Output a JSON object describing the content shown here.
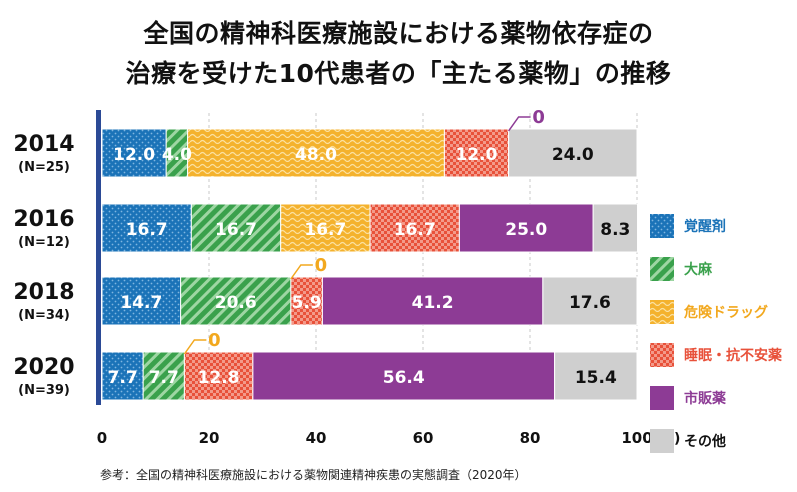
{
  "title_line1": "全国の精神科医療施設における薬物依存症の",
  "title_line2": "治療を受けた10代患者の「主たる薬物」の推移",
  "source_note": "参考：全国の精神科医療施設における薬物関連精神疾患の実態調査（2020年）",
  "colors": {
    "覚醒剤": "#1b73b8",
    "大麻": "#3aa14c",
    "危険ドラッグ": "#f2a81e",
    "睡眠・抗不安薬": "#e8513a",
    "市販薬": "#8d3b95",
    "その他": "#cfcfcf",
    "axis": "#2b4a96",
    "zero_label_2014": "#8d3b95",
    "zero_label_2018": "#f2a81e",
    "zero_label_2020": "#f2a81e"
  },
  "chart_data": {
    "type": "bar",
    "orientation": "horizontal-stacked",
    "categories": [
      "2014",
      "2016",
      "2018",
      "2020"
    ],
    "category_sublabels": [
      "(N=25)",
      "(N=12)",
      "(N=34)",
      "(N=39)"
    ],
    "series": [
      {
        "name": "覚醒剤",
        "values": [
          12.0,
          16.7,
          14.7,
          7.7
        ]
      },
      {
        "name": "大麻",
        "values": [
          4.0,
          16.7,
          20.6,
          7.7
        ]
      },
      {
        "name": "危険ドラッグ",
        "values": [
          48.0,
          16.7,
          0,
          0
        ]
      },
      {
        "name": "睡眠・抗不安薬",
        "values": [
          12.0,
          16.7,
          5.9,
          12.8
        ]
      },
      {
        "name": "市販薬",
        "values": [
          0,
          25.0,
          41.2,
          56.4
        ]
      },
      {
        "name": "その他",
        "values": [
          24.0,
          8.3,
          17.6,
          15.4
        ]
      }
    ],
    "value_labels": [
      [
        "12.0",
        "4.0",
        "48.0",
        "12.0",
        "0",
        "24.0"
      ],
      [
        "16.7",
        "16.7",
        "16.7",
        "16.7",
        "25.0",
        "8.3"
      ],
      [
        "14.7",
        "20.6",
        "0",
        "5.9",
        "41.2",
        "17.6"
      ],
      [
        "7.7",
        "7.7",
        "0",
        "12.8",
        "56.4",
        "15.4"
      ]
    ],
    "x_ticks": [
      "0",
      "20",
      "40",
      "60",
      "80",
      "100"
    ],
    "x_unit": "(%)",
    "xlim": [
      0,
      100
    ],
    "legend": [
      "覚醒剤",
      "大麻",
      "危険ドラッグ",
      "睡眠・抗不安薬",
      "市販薬",
      "その他"
    ],
    "legend_position": "right",
    "grid": "vertical dashed"
  }
}
